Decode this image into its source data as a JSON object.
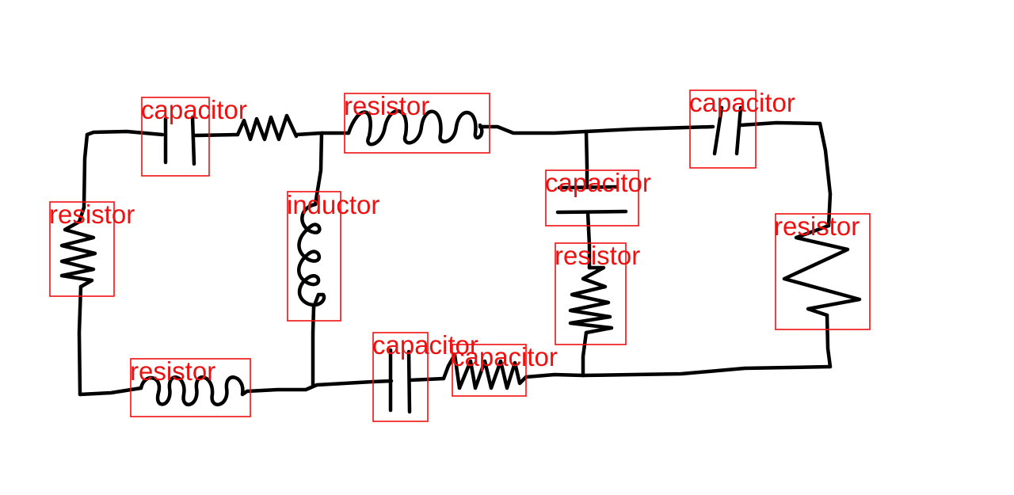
{
  "colors": {
    "annotation": "#ee1111",
    "ink": "#000000",
    "background": "#ffffff"
  },
  "components": [
    {
      "id": "c1",
      "label": "capacitor"
    },
    {
      "id": "r1",
      "label": "resistor"
    },
    {
      "id": "c2",
      "label": "capacitor"
    },
    {
      "id": "r2",
      "label": "resistor"
    },
    {
      "id": "l1",
      "label": "inductor"
    },
    {
      "id": "c3",
      "label": "capacitor"
    },
    {
      "id": "r3",
      "label": "resistor"
    },
    {
      "id": "r4",
      "label": "resistor"
    },
    {
      "id": "r5",
      "label": "resistor"
    },
    {
      "id": "c4",
      "label": "capacitor"
    },
    {
      "id": "c5",
      "label": "capacitor"
    }
  ]
}
